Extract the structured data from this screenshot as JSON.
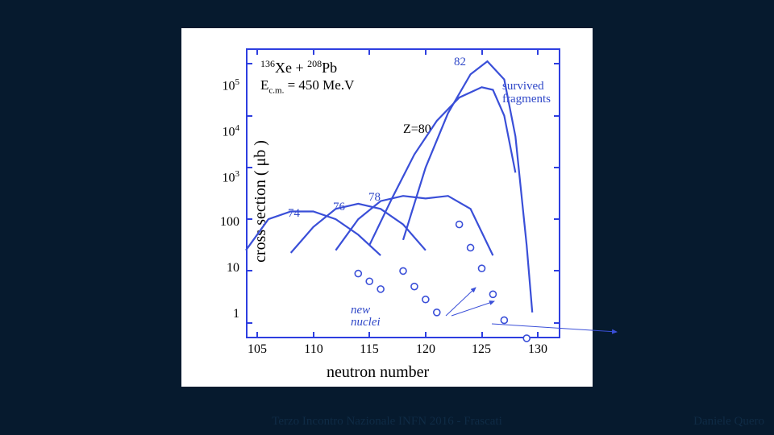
{
  "slide": {
    "background_color": "#061a2e",
    "footer_center": "Terzo Incontro Nazionale INFN 2016 - Frascati",
    "footer_right": "Daniele Quero",
    "footer_color": "#0f2b45",
    "footer_fontsize": 15
  },
  "chart": {
    "type": "line",
    "background_color": "#ffffff",
    "axis_color": "#2e3fe0",
    "curve_color": "#3a4fd8",
    "label_color": "#3048c8",
    "text_color": "#000000",
    "reaction_sup1": "136",
    "reaction_el1": "Xe + ",
    "reaction_sup2": "208",
    "reaction_el2": "Pb",
    "energy_label": "E",
    "energy_sub": "c.m.",
    "energy_val": " = 450 Me.V",
    "xlabel": "neutron number",
    "ylabel": "cross  section  ( μb )",
    "x_axis": {
      "min": 104,
      "max": 132,
      "ticks": [
        105,
        110,
        115,
        120,
        125,
        130
      ]
    },
    "y_axis": {
      "scale": "log",
      "min": 0.5,
      "max": 200000,
      "tick_labels": [
        "1",
        "10",
        "100",
        "10^3",
        "10^4",
        "10^5"
      ]
    },
    "annotations": {
      "z80": "Z=80",
      "z74": "74",
      "z76": "76",
      "z78": "78",
      "z82": "82",
      "survived_1": "survived",
      "survived_2": "fragments",
      "new_1": "new",
      "new_2": "nuclei"
    },
    "curves": {
      "z74": [
        [
          104,
          1.4
        ],
        [
          106,
          2.0
        ],
        [
          108,
          2.15
        ],
        [
          110,
          2.15
        ],
        [
          112,
          2.0
        ],
        [
          114,
          1.7
        ],
        [
          116,
          1.3
        ]
      ],
      "z76": [
        [
          108,
          1.35
        ],
        [
          110,
          1.85
        ],
        [
          112,
          2.2
        ],
        [
          114,
          2.3
        ],
        [
          116,
          2.2
        ],
        [
          118,
          1.9
        ],
        [
          120,
          1.4
        ]
      ],
      "z78": [
        [
          112,
          1.4
        ],
        [
          114,
          2.0
        ],
        [
          116,
          2.35
        ],
        [
          118,
          2.45
        ],
        [
          120,
          2.4
        ],
        [
          122,
          2.45
        ],
        [
          124,
          2.2
        ],
        [
          126,
          1.3
        ]
      ],
      "z80": [
        [
          115,
          1.5
        ],
        [
          117,
          2.4
        ],
        [
          119,
          3.25
        ],
        [
          121,
          3.9
        ],
        [
          123,
          4.35
        ],
        [
          125,
          4.55
        ],
        [
          126,
          4.5
        ],
        [
          127,
          4.0
        ],
        [
          128,
          2.9
        ]
      ],
      "z82": [
        [
          118,
          1.6
        ],
        [
          120,
          3.0
        ],
        [
          122,
          4.05
        ],
        [
          124,
          4.8
        ],
        [
          125.5,
          5.05
        ],
        [
          127,
          4.7
        ],
        [
          128,
          3.6
        ],
        [
          129,
          1.5
        ],
        [
          129.5,
          0.2
        ]
      ]
    },
    "markers": {
      "s1": [
        [
          114,
          0.95
        ],
        [
          115,
          0.8
        ],
        [
          116,
          0.65
        ]
      ],
      "s2": [
        [
          118,
          1.0
        ],
        [
          119,
          0.7
        ],
        [
          120,
          0.45
        ],
        [
          121,
          0.2
        ]
      ],
      "s3": [
        [
          123,
          1.9
        ],
        [
          124,
          1.45
        ],
        [
          125,
          1.05
        ],
        [
          126,
          0.55
        ],
        [
          127,
          0.05
        ],
        [
          129,
          -0.3
        ]
      ]
    },
    "marker_radius": 4
  }
}
